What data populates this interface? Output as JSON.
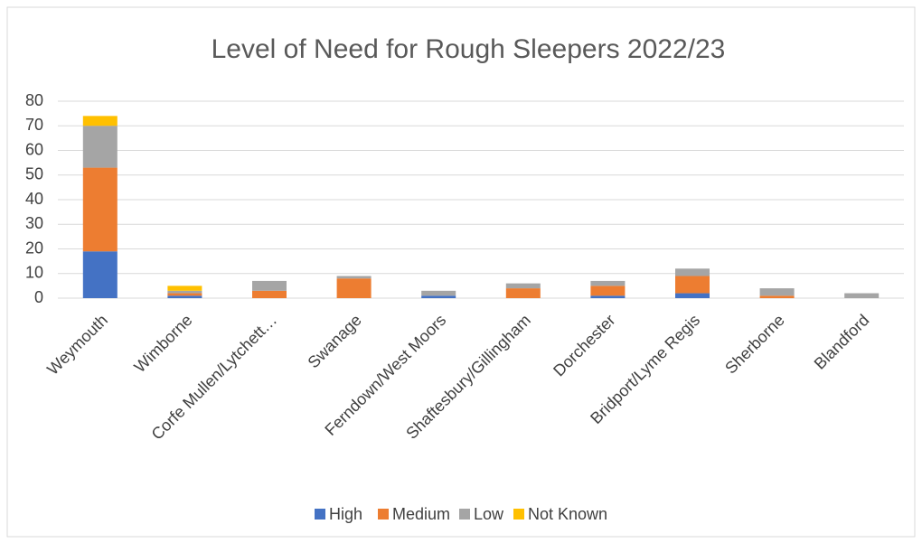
{
  "chart_data": {
    "type": "stacked_bar",
    "title": "Level of Need for Rough Sleepers 2022/23",
    "categories": [
      "Weymouth",
      "Wimborne",
      "Corfe Mullen/Lytchett…",
      "Swanage",
      "Ferndown/West Moors",
      "Shaftesbury/Gillingham",
      "Dorchester",
      "Bridport/Lyme Regis",
      "Sherborne",
      "Blandford"
    ],
    "series": [
      {
        "name": "High",
        "color": "#4472c4",
        "values": [
          19,
          1,
          0,
          0,
          1,
          0,
          1,
          2,
          0,
          0
        ]
      },
      {
        "name": "Medium",
        "color": "#ed7d31",
        "values": [
          34,
          1,
          3,
          8,
          0,
          4,
          4,
          7,
          1,
          0
        ]
      },
      {
        "name": "Low",
        "color": "#a5a5a5",
        "values": [
          17,
          1,
          4,
          1,
          2,
          2,
          2,
          3,
          3,
          2
        ]
      },
      {
        "name": "Not Known",
        "color": "#ffc000",
        "values": [
          4,
          2,
          0,
          0,
          0,
          0,
          0,
          0,
          0,
          0
        ]
      }
    ],
    "ylim": [
      0,
      80
    ],
    "yticks": [
      0,
      10,
      20,
      30,
      40,
      50,
      60,
      70,
      80
    ],
    "grid": true,
    "legend": "bottom"
  }
}
